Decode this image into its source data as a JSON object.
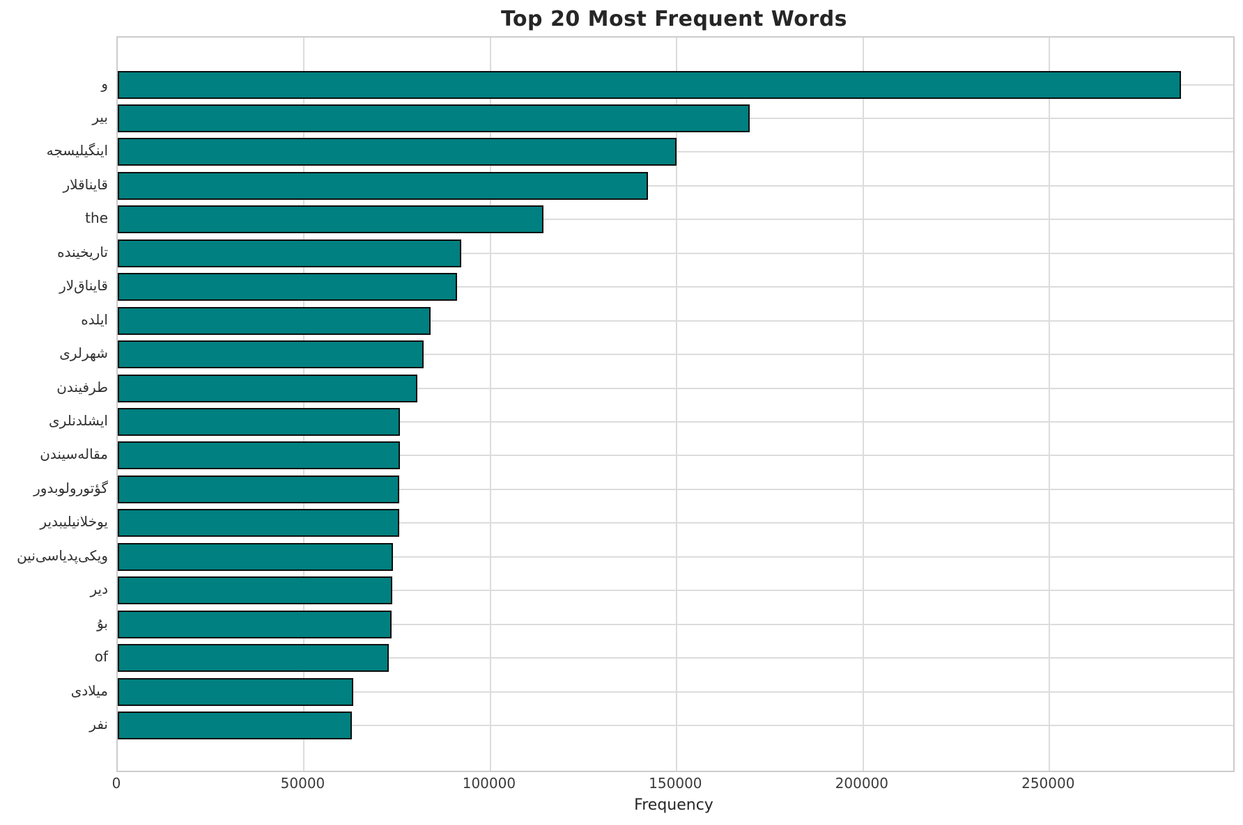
{
  "title": "Top 20 Most Frequent Words",
  "colors": {
    "bar_fill": "#008080",
    "bar_edge": "#0d0d0d",
    "grid": "#dcdcdc",
    "spine": "#cccccc",
    "title_text": "#262626",
    "tick_text": "#3b3b3b"
  },
  "chart_data": {
    "type": "bar",
    "orientation": "horizontal",
    "title": "Top 20 Most Frequent Words",
    "xlabel": "Frequency",
    "ylabel": "",
    "categories": [
      "و",
      "بیر",
      "اینگیلیسجه",
      "قایناقلار",
      "the",
      "تاریخینده",
      "قایناق‌لار",
      "ایلده",
      "شهرلری",
      "طرفیندن",
      "ایشلدنلری",
      "مقاله‌سیندن",
      "گؤتورولوبدور",
      "یوخلانیلیبدیر",
      "ویکی‌پدیاسی‌نین",
      "دیر",
      "بۇ",
      "of",
      "میلادی",
      "نفر"
    ],
    "values": [
      285300,
      169600,
      150000,
      142200,
      114300,
      92200,
      91100,
      83900,
      82000,
      80400,
      75700,
      75650,
      75600,
      75550,
      73800,
      73600,
      73500,
      72700,
      63100,
      62800
    ],
    "xlim": [
      0,
      299300
    ],
    "xticks": [
      0,
      50000,
      100000,
      150000,
      200000,
      250000
    ],
    "grid": "both",
    "legend": "none"
  }
}
